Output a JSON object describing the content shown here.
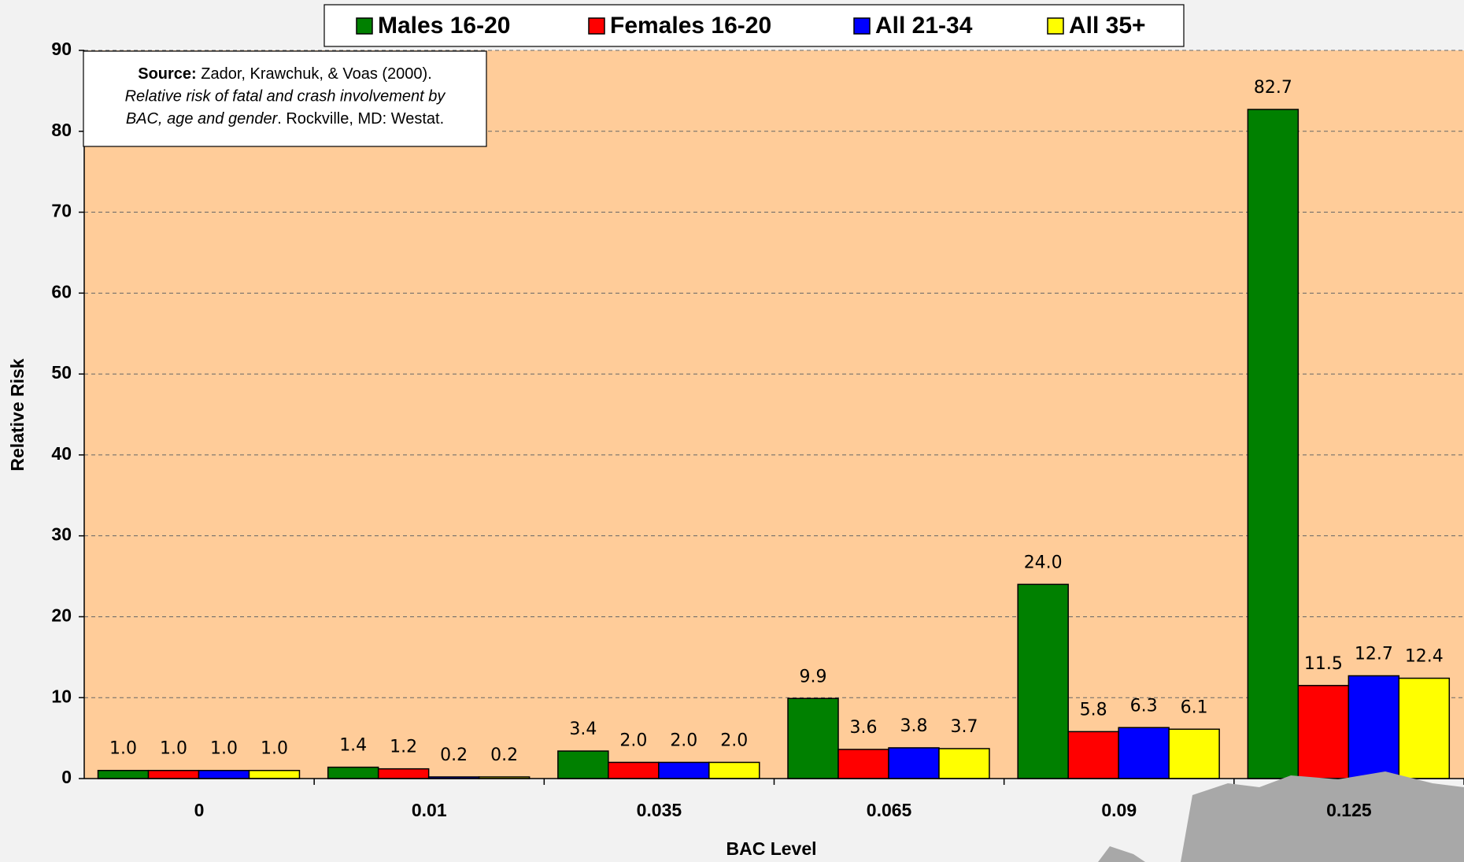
{
  "chart_data": {
    "type": "bar",
    "x_label": "BAC Level",
    "y_label": "Relative Risk",
    "categories": [
      "0",
      "0.01",
      "0.035",
      "0.065",
      "0.09",
      "0.125"
    ],
    "series": [
      {
        "name": "Males 16-20",
        "color": "#008000",
        "values": [
          1.0,
          1.4,
          3.4,
          9.9,
          24.0,
          82.7
        ],
        "value_labels": [
          "1.0",
          "1.4",
          "3.4",
          "9.9",
          "24.0",
          "82.7"
        ]
      },
      {
        "name": "Females 16-20",
        "color": "#ff0000",
        "values": [
          1.0,
          1.2,
          2.0,
          3.6,
          5.8,
          11.5
        ],
        "value_labels": [
          "1.0",
          "1.2",
          "2.0",
          "3.6",
          "5.8",
          "11.5"
        ]
      },
      {
        "name": "All 21-34",
        "color": "#0000ff",
        "values": [
          1.0,
          0.2,
          2.0,
          3.8,
          6.3,
          12.7
        ],
        "value_labels": [
          "1.0",
          "0.2",
          "2.0",
          "3.8",
          "6.3",
          "12.7"
        ]
      },
      {
        "name": "All 35+",
        "color": "#ffff00",
        "values": [
          1.0,
          0.2,
          2.0,
          3.7,
          6.1,
          12.4
        ],
        "value_labels": [
          "1.0",
          "0.2",
          "2.0",
          "3.7",
          "6.1",
          "12.4"
        ]
      }
    ],
    "ylim": [
      0,
      90
    ],
    "yticks": [
      0,
      10,
      20,
      30,
      40,
      50,
      60,
      70,
      80,
      90
    ],
    "grid": true,
    "legend": "top",
    "annotation": {
      "bold": "Source:",
      "line1": " Zador, Krawchuk, & Voas (2000).",
      "line2": "Relative risk of fatal and crash involvement by",
      "line3_italic": "BAC, age and gender",
      "line3": ". Rockville, MD: Westat."
    }
  }
}
